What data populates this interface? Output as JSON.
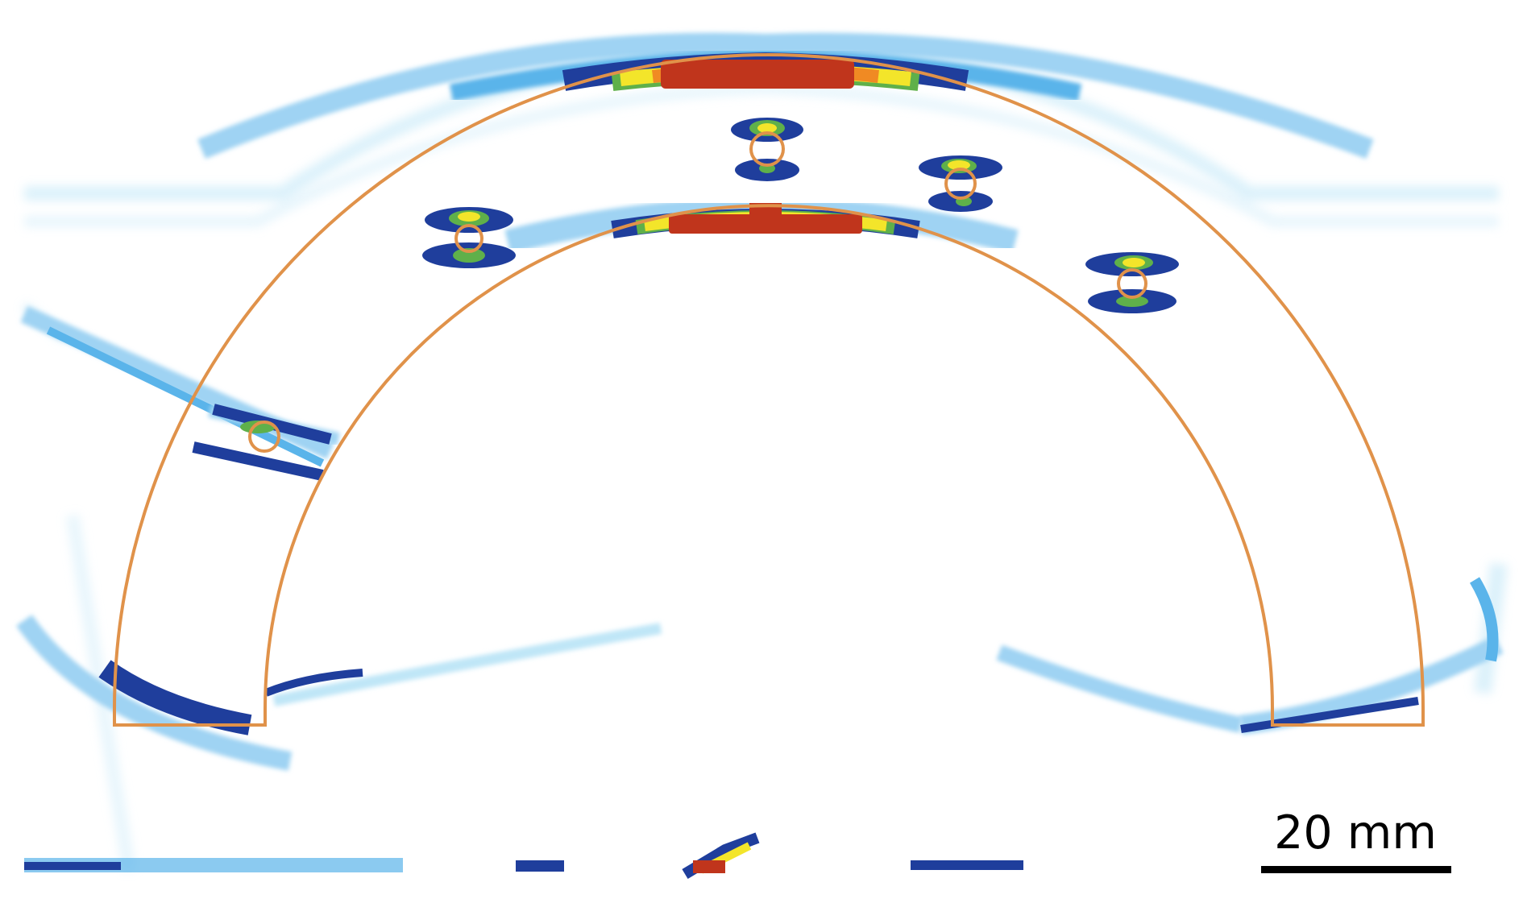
{
  "scale_bar": {
    "label": "20 mm"
  },
  "colors": {
    "background": "#ffffff",
    "overlay_outline": "#e0924a",
    "signal_low": "#bfe6f7",
    "signal_mid": "#5ab4ea",
    "signal_dark": "#1f3e9c",
    "signal_green": "#5fb04a",
    "signal_yellow": "#f3e52a",
    "signal_orange": "#f08a23",
    "signal_red": "#c0351c",
    "scale_bar": "#000000"
  }
}
